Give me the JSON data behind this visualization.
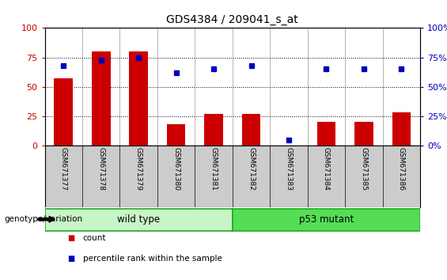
{
  "title": "GDS4384 / 209041_s_at",
  "samples": [
    "GSM671377",
    "GSM671378",
    "GSM671379",
    "GSM671380",
    "GSM671381",
    "GSM671382",
    "GSM671383",
    "GSM671384",
    "GSM671385",
    "GSM671386"
  ],
  "counts": [
    57,
    80,
    80,
    18,
    27,
    27,
    0,
    20,
    20,
    28
  ],
  "percentiles": [
    68,
    73,
    75,
    62,
    65,
    68,
    5,
    65,
    65,
    65
  ],
  "groups": [
    {
      "label": "wild type",
      "start": 0,
      "end": 5,
      "color": "#c8f5c8"
    },
    {
      "label": "p53 mutant",
      "start": 5,
      "end": 10,
      "color": "#55dd55"
    }
  ],
  "bar_color": "#cc0000",
  "dot_color": "#0000bb",
  "left_axis_color": "#cc0000",
  "right_axis_color": "#0000bb",
  "yticks": [
    0,
    25,
    50,
    75,
    100
  ],
  "ylim": [
    0,
    100
  ],
  "grid_color": "black",
  "grid_style": "dotted",
  "xtick_bg": "#cccccc",
  "plot_bg": "white",
  "genotype_label": "genotype/variation",
  "legend_items": [
    {
      "label": "count",
      "color": "#cc0000"
    },
    {
      "label": "percentile rank within the sample",
      "color": "#0000bb"
    }
  ]
}
